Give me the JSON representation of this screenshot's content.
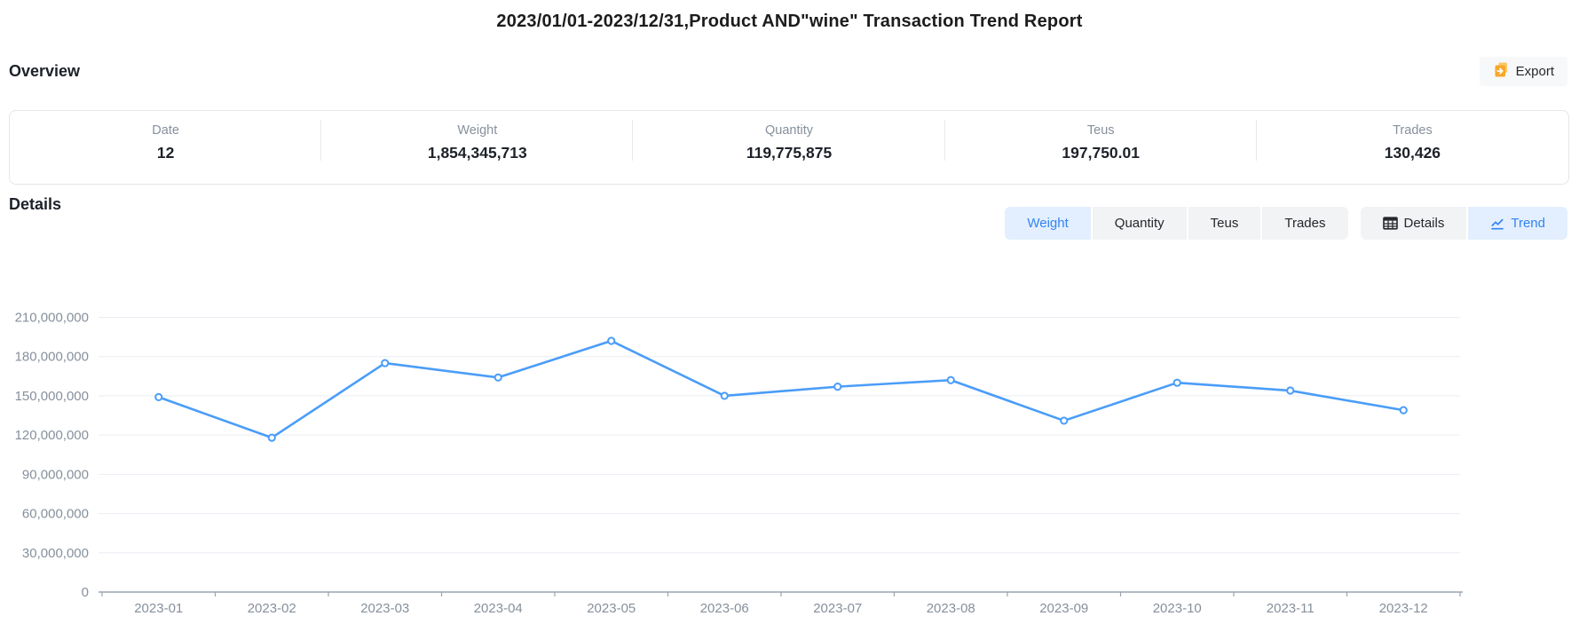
{
  "page": {
    "title": "2023/01/01-2023/12/31,Product AND\"wine\" Transaction Trend Report"
  },
  "overview": {
    "heading": "Overview",
    "export_label": "Export",
    "export_icon": "export-document-icon",
    "stats": [
      {
        "label": "Date",
        "value": "12"
      },
      {
        "label": "Weight",
        "value": "1,854,345,713"
      },
      {
        "label": "Quantity",
        "value": "119,775,875"
      },
      {
        "label": "Teus",
        "value": "197,750.01"
      },
      {
        "label": "Trades",
        "value": "130,426"
      }
    ]
  },
  "details": {
    "heading": "Details",
    "metric_tabs": [
      {
        "label": "Weight",
        "active": true
      },
      {
        "label": "Quantity",
        "active": false
      },
      {
        "label": "Teus",
        "active": false
      },
      {
        "label": "Trades",
        "active": false
      }
    ],
    "view_tabs": [
      {
        "label": "Details",
        "icon": "table-icon",
        "active": false
      },
      {
        "label": "Trend",
        "icon": "line-chart-icon",
        "active": true
      }
    ]
  },
  "colors": {
    "accent_blue": "#3583f2",
    "line_blue": "#4a9df8",
    "active_tab_bg": "#e3effe",
    "export_icon_orange": "#f7a82b",
    "grid_line": "#e9edf3",
    "axis_gray": "#9aa3ad",
    "label_gray": "#86909c"
  },
  "chart_data": {
    "type": "line",
    "title": "",
    "xlabel": "",
    "ylabel": "",
    "x": [
      "2023-01",
      "2023-02",
      "2023-03",
      "2023-04",
      "2023-05",
      "2023-06",
      "2023-07",
      "2023-08",
      "2023-09",
      "2023-10",
      "2023-11",
      "2023-12"
    ],
    "series": [
      {
        "name": "Weight",
        "values": [
          149000000,
          118000000,
          175000000,
          164000000,
          192000000,
          150000000,
          157000000,
          162000000,
          131000000,
          160000000,
          154000000,
          139000000
        ]
      }
    ],
    "ylim": [
      0,
      210000000
    ],
    "y_ticks": [
      0,
      30000000,
      60000000,
      90000000,
      120000000,
      150000000,
      180000000,
      210000000
    ],
    "grid": true,
    "legend": false,
    "line_color": "#4a9df8",
    "marker": "hollow-circle"
  }
}
